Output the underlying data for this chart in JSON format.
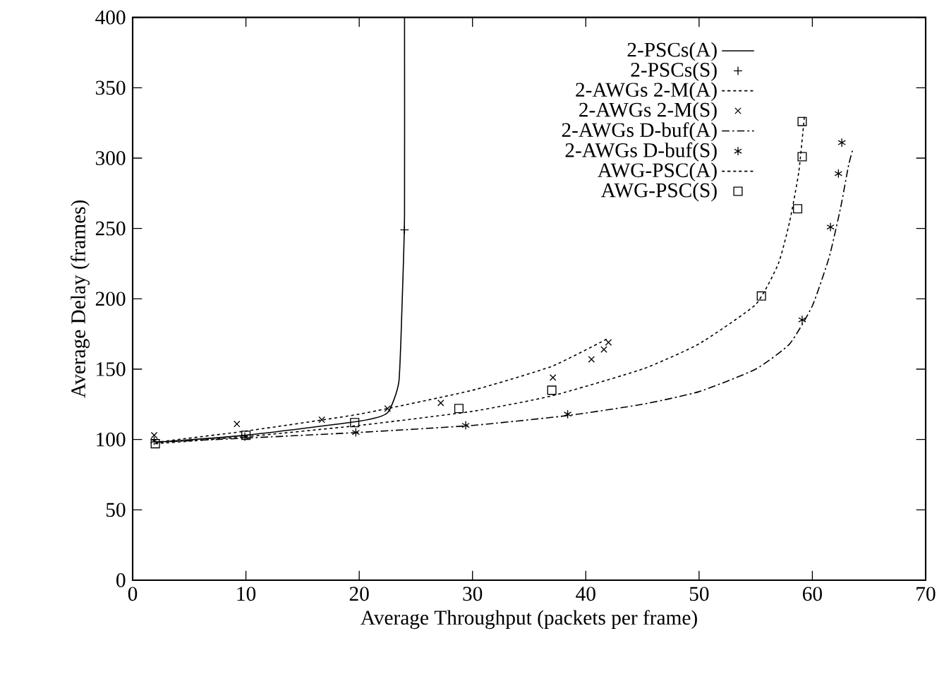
{
  "chart_data": {
    "type": "line",
    "xlabel": "Average Throughput (packets per frame)",
    "ylabel": "Average Delay (frames)",
    "xlim": [
      0,
      70
    ],
    "xticks": [
      0,
      10,
      20,
      30,
      40,
      50,
      60,
      70
    ],
    "ylim": [
      0,
      400
    ],
    "yticks": [
      0,
      50,
      100,
      150,
      200,
      250,
      300,
      350,
      400
    ],
    "legend": "top right",
    "grid": false,
    "series": [
      {
        "name": "2-PSCs(A)",
        "line_style": "solid",
        "marker": "none",
        "color": "#000000",
        "x": [
          2,
          10,
          20,
          22.5,
          23.5,
          23.8,
          24,
          24
        ],
        "values": [
          98,
          103,
          113,
          119,
          141,
          200,
          260,
          400
        ]
      },
      {
        "name": "2-PSCs(S)",
        "type": "scatter",
        "marker": "plus",
        "color": "#000000",
        "x": [
          24
        ],
        "values": [
          249
        ]
      },
      {
        "name": "2-AWGs 2-M(A)",
        "line_style": "dotted",
        "marker": "none",
        "color": "#000000",
        "x": [
          2,
          10,
          20,
          30,
          37,
          42
        ],
        "values": [
          98,
          106,
          118,
          135,
          152,
          172
        ]
      },
      {
        "name": "2-AWGs 2-M(S)",
        "type": "scatter",
        "marker": "cross",
        "color": "#000000",
        "x": [
          1.9,
          9.2,
          16.7,
          22.5,
          27.2,
          37.1,
          40.5,
          41.6,
          42
        ],
        "values": [
          103,
          111,
          114,
          122,
          126,
          144,
          157,
          164,
          169
        ]
      },
      {
        "name": "2-AWGs D-buf(A)",
        "line_style": "dashdot",
        "marker": "none",
        "color": "#000000",
        "x": [
          2,
          10,
          20,
          30,
          38.4,
          45,
          50,
          55,
          58,
          60,
          61.5,
          62.5,
          63.2,
          63.6
        ],
        "values": [
          98,
          101,
          105,
          110,
          117,
          125,
          134,
          150,
          168,
          195,
          230,
          265,
          295,
          307
        ]
      },
      {
        "name": "2-AWGs D-buf(S)",
        "type": "scatter",
        "color": "#000000",
        "x": [
          1.9,
          9.9,
          19.7,
          29.4,
          38.4,
          59.1,
          61.6,
          62.3,
          62.6
        ],
        "values": [
          99,
          102,
          105,
          110,
          118,
          185,
          251,
          289,
          311
        ]
      },
      {
        "name": "AWG-PSC(A)",
        "line_style": "dotted",
        "marker": "none",
        "color": "#000000",
        "x": [
          2,
          10,
          20,
          30,
          37,
          45,
          50,
          55,
          57,
          58,
          58.8,
          59.3
        ],
        "values": [
          97,
          102,
          110,
          120,
          131,
          150,
          168,
          196,
          225,
          255,
          290,
          330
        ]
      },
      {
        "name": "AWG-PSC(S)",
        "type": "scatter",
        "marker": "square",
        "color": "#000000",
        "x": [
          2,
          10,
          19.6,
          28.8,
          37,
          55.5,
          58.7,
          59.1,
          59.1
        ],
        "values": [
          97,
          103,
          112,
          122,
          135,
          202,
          264,
          301,
          326
        ]
      }
    ]
  }
}
